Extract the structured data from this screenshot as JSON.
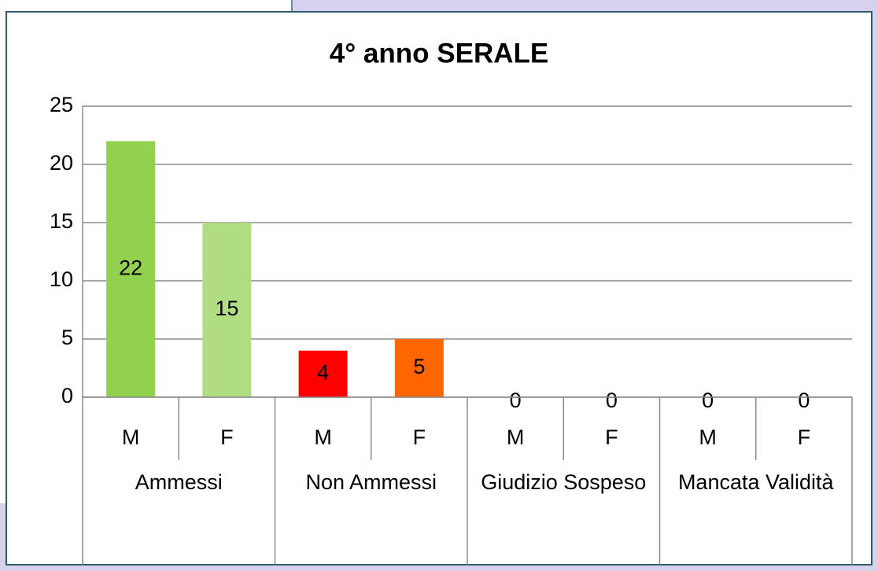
{
  "chart_data": {
    "type": "bar",
    "title": "4° anno SERALE",
    "groups": [
      {
        "name": "Ammessi",
        "categories": [
          "M",
          "F"
        ],
        "values": [
          22,
          15
        ],
        "colors": [
          "#92d050",
          "#b0dd82"
        ]
      },
      {
        "name": "Non Ammessi",
        "categories": [
          "M",
          "F"
        ],
        "values": [
          4,
          5
        ],
        "colors": [
          "#ff0000",
          "#ff6600"
        ]
      },
      {
        "name": "Giudizio Sospeso",
        "categories": [
          "M",
          "F"
        ],
        "values": [
          0,
          0
        ]
      },
      {
        "name": "Mancata Validità",
        "categories": [
          "M",
          "F"
        ],
        "values": [
          0,
          0
        ]
      }
    ],
    "ylim": [
      0,
      25
    ],
    "yticks": [
      0,
      5,
      10,
      15,
      20,
      25
    ],
    "grid": true
  }
}
